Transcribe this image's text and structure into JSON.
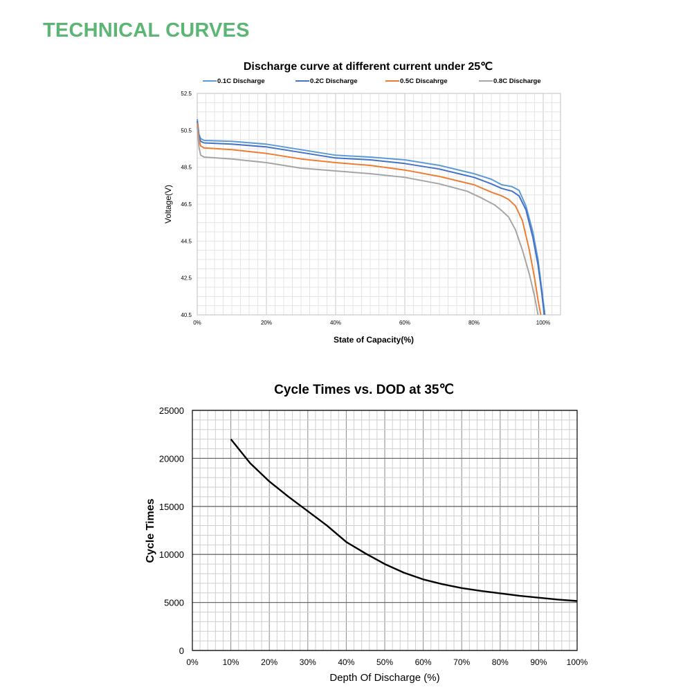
{
  "page": {
    "heading": "TECHNICAL CURVES"
  },
  "chart_data": [
    {
      "type": "line",
      "title": "Discharge curve at different current under 25℃",
      "xlabel": "State of Capacity(%)",
      "ylabel": "Voltage(V)",
      "xlim": [
        0,
        105
      ],
      "ylim": [
        40.5,
        52.5
      ],
      "x_ticks": [
        "0%",
        "20%",
        "40%",
        "60%",
        "80%",
        "100%"
      ],
      "x_tick_values": [
        0,
        20,
        40,
        60,
        80,
        100
      ],
      "y_ticks": [
        "40.5",
        "42.5",
        "44.5",
        "46.5",
        "48.5",
        "50.5",
        "52.5"
      ],
      "y_tick_values": [
        40.5,
        42.5,
        44.5,
        46.5,
        48.5,
        50.5,
        52.5
      ],
      "grid": true,
      "legend_position": "top",
      "series": [
        {
          "name": "0.1C Discharge",
          "color": "#5b9bd5",
          "points": [
            [
              0,
              51.1
            ],
            [
              0.5,
              50.3
            ],
            [
              1,
              50.05
            ],
            [
              2,
              49.95
            ],
            [
              10,
              49.9
            ],
            [
              20,
              49.75
            ],
            [
              30,
              49.45
            ],
            [
              40,
              49.15
            ],
            [
              50,
              49.05
            ],
            [
              60,
              48.9
            ],
            [
              70,
              48.6
            ],
            [
              80,
              48.15
            ],
            [
              85,
              47.85
            ],
            [
              88,
              47.55
            ],
            [
              91,
              47.45
            ],
            [
              93,
              47.25
            ],
            [
              95,
              46.4
            ],
            [
              97,
              45.0
            ],
            [
              98.5,
              43.5
            ],
            [
              99.5,
              42.0
            ],
            [
              100.5,
              40.5
            ]
          ]
        },
        {
          "name": "0.2C Discharge",
          "color": "#4472c4",
          "points": [
            [
              0,
              51.0
            ],
            [
              0.5,
              50.2
            ],
            [
              1,
              49.9
            ],
            [
              2,
              49.82
            ],
            [
              10,
              49.75
            ],
            [
              20,
              49.6
            ],
            [
              30,
              49.3
            ],
            [
              40,
              49.0
            ],
            [
              50,
              48.9
            ],
            [
              60,
              48.7
            ],
            [
              70,
              48.4
            ],
            [
              80,
              47.95
            ],
            [
              85,
              47.6
            ],
            [
              88,
              47.35
            ],
            [
              91,
              47.2
            ],
            [
              93,
              46.95
            ],
            [
              95,
              46.2
            ],
            [
              97,
              44.7
            ],
            [
              98.5,
              43.2
            ],
            [
              99.5,
              41.8
            ],
            [
              100.3,
              40.5
            ]
          ]
        },
        {
          "name": "0.5C Discahrge",
          "color": "#ed7d31",
          "points": [
            [
              0,
              50.9
            ],
            [
              0.5,
              50.0
            ],
            [
              1,
              49.65
            ],
            [
              2,
              49.55
            ],
            [
              10,
              49.45
            ],
            [
              20,
              49.25
            ],
            [
              30,
              48.95
            ],
            [
              40,
              48.75
            ],
            [
              50,
              48.6
            ],
            [
              60,
              48.35
            ],
            [
              70,
              48.0
            ],
            [
              80,
              47.55
            ],
            [
              85,
              47.15
            ],
            [
              88,
              46.95
            ],
            [
              90,
              46.75
            ],
            [
              92,
              46.4
            ],
            [
              94,
              45.6
            ],
            [
              96,
              44.0
            ],
            [
              97.5,
              42.5
            ],
            [
              98.5,
              41.3
            ],
            [
              99.3,
              40.5
            ]
          ]
        },
        {
          "name": "0.8C Discharge",
          "color": "#a5a5a5",
          "points": [
            [
              0,
              50.7
            ],
            [
              0.5,
              49.6
            ],
            [
              1,
              49.15
            ],
            [
              2,
              49.05
            ],
            [
              10,
              48.95
            ],
            [
              20,
              48.75
            ],
            [
              30,
              48.45
            ],
            [
              40,
              48.3
            ],
            [
              50,
              48.15
            ],
            [
              60,
              47.95
            ],
            [
              70,
              47.6
            ],
            [
              78,
              47.2
            ],
            [
              82,
              46.85
            ],
            [
              86,
              46.45
            ],
            [
              88,
              46.15
            ],
            [
              90,
              45.8
            ],
            [
              92,
              45.1
            ],
            [
              94,
              44.0
            ],
            [
              96,
              42.7
            ],
            [
              97.5,
              41.5
            ],
            [
              98.5,
              40.5
            ]
          ]
        }
      ]
    },
    {
      "type": "line",
      "title": "Cycle Times vs. DOD at 35℃",
      "xlabel": "Depth Of Discharge (%)",
      "ylabel": "Cycle Times",
      "xlim": [
        0,
        100
      ],
      "ylim": [
        0,
        25000
      ],
      "x_ticks": [
        "0%",
        "10%",
        "20%",
        "30%",
        "40%",
        "50%",
        "60%",
        "70%",
        "80%",
        "90%",
        "100%"
      ],
      "x_tick_values": [
        0,
        10,
        20,
        30,
        40,
        50,
        60,
        70,
        80,
        90,
        100
      ],
      "y_ticks": [
        "0",
        "5000",
        "10000",
        "15000",
        "20000",
        "25000"
      ],
      "y_tick_values": [
        0,
        5000,
        10000,
        15000,
        20000,
        25000
      ],
      "grid": true,
      "series": [
        {
          "color": "#000000",
          "points": [
            [
              10,
              22000
            ],
            [
              15,
              19500
            ],
            [
              20,
              17600
            ],
            [
              25,
              16000
            ],
            [
              30,
              14500
            ],
            [
              35,
              13000
            ],
            [
              40,
              11300
            ],
            [
              45,
              10100
            ],
            [
              50,
              9000
            ],
            [
              55,
              8100
            ],
            [
              60,
              7400
            ],
            [
              65,
              6900
            ],
            [
              70,
              6500
            ],
            [
              75,
              6200
            ],
            [
              80,
              5950
            ],
            [
              85,
              5700
            ],
            [
              90,
              5500
            ],
            [
              95,
              5300
            ],
            [
              100,
              5150
            ]
          ]
        }
      ]
    }
  ]
}
